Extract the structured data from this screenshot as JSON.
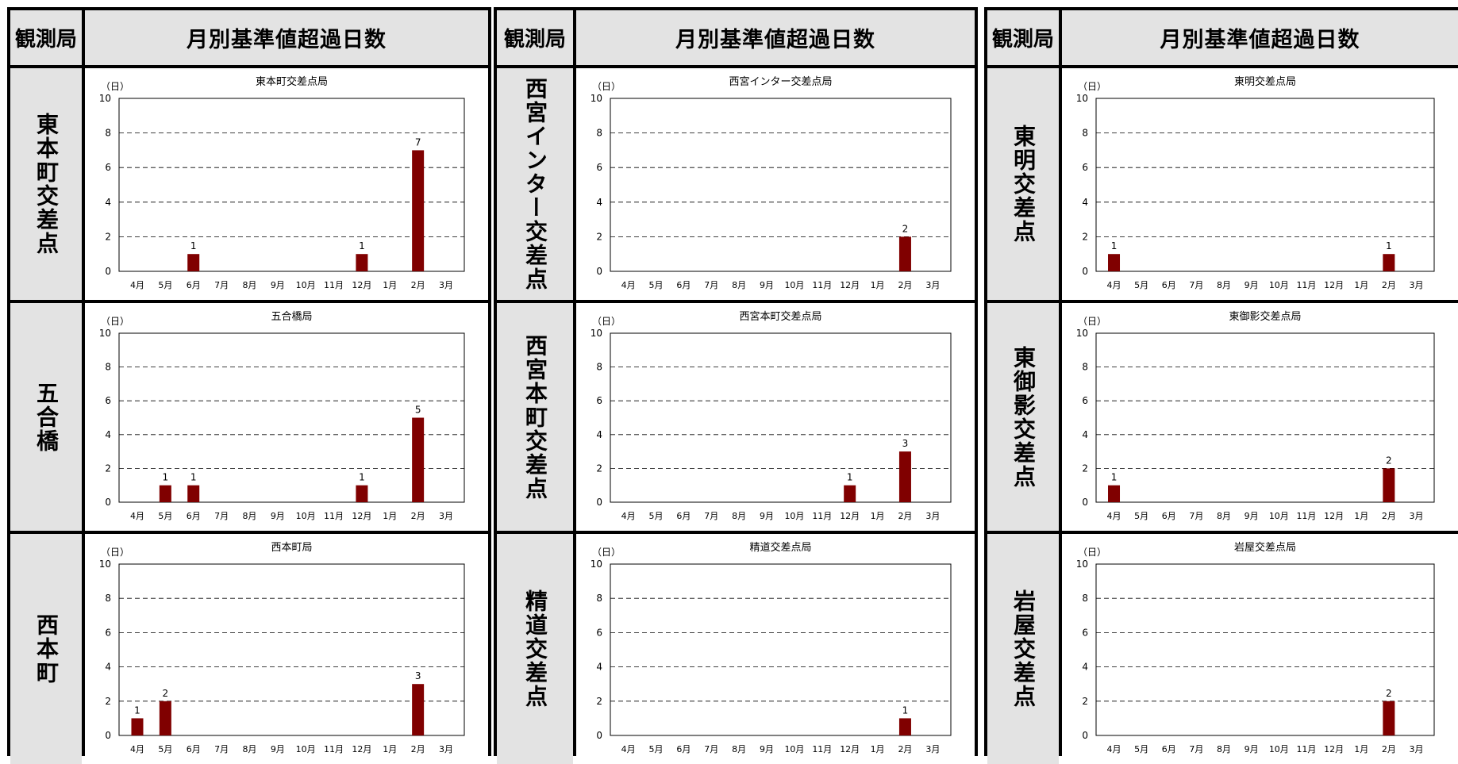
{
  "header": {
    "observatory_label": "観測局",
    "title": "月別基準値超過日数"
  },
  "colors": {
    "bar": "#800000",
    "header_bg": "#e3e3e3",
    "border": "#000000"
  },
  "chart_data": [
    {
      "type": "bar",
      "station": "東本町交差点",
      "title": "東本町交差点局",
      "ylabel": "（日）",
      "categories": [
        "4月",
        "5月",
        "6月",
        "7月",
        "8月",
        "9月",
        "10月",
        "11月",
        "12月",
        "1月",
        "2月",
        "3月"
      ],
      "values": [
        0,
        0,
        1,
        0,
        0,
        0,
        0,
        0,
        1,
        0,
        7,
        0
      ],
      "ylim": [
        0,
        10
      ],
      "yticks": [
        0,
        2,
        4,
        6,
        8,
        10
      ],
      "grid": true
    },
    {
      "type": "bar",
      "station": "五合橋",
      "title": "五合橋局",
      "ylabel": "（日）",
      "categories": [
        "4月",
        "5月",
        "6月",
        "7月",
        "8月",
        "9月",
        "10月",
        "11月",
        "12月",
        "1月",
        "2月",
        "3月"
      ],
      "values": [
        0,
        1,
        1,
        0,
        0,
        0,
        0,
        0,
        1,
        0,
        5,
        0
      ],
      "ylim": [
        0,
        10
      ],
      "yticks": [
        0,
        2,
        4,
        6,
        8,
        10
      ],
      "grid": true
    },
    {
      "type": "bar",
      "station": "西本町",
      "title": "西本町局",
      "ylabel": "（日）",
      "categories": [
        "4月",
        "5月",
        "6月",
        "7月",
        "8月",
        "9月",
        "10月",
        "11月",
        "12月",
        "1月",
        "2月",
        "3月"
      ],
      "values": [
        1,
        2,
        0,
        0,
        0,
        0,
        0,
        0,
        0,
        0,
        3,
        0
      ],
      "ylim": [
        0,
        10
      ],
      "yticks": [
        0,
        2,
        4,
        6,
        8,
        10
      ],
      "grid": true
    },
    {
      "type": "bar",
      "station": "西宮インター交差点",
      "title": "西宮インター交差点局",
      "ylabel": "（日）",
      "categories": [
        "4月",
        "5月",
        "6月",
        "7月",
        "8月",
        "9月",
        "10月",
        "11月",
        "12月",
        "1月",
        "2月",
        "3月"
      ],
      "values": [
        0,
        0,
        0,
        0,
        0,
        0,
        0,
        0,
        0,
        0,
        2,
        0
      ],
      "ylim": [
        0,
        10
      ],
      "yticks": [
        0,
        2,
        4,
        6,
        8,
        10
      ],
      "grid": true
    },
    {
      "type": "bar",
      "station": "西宮本町交差点",
      "title": "西宮本町交差点局",
      "ylabel": "（日）",
      "categories": [
        "4月",
        "5月",
        "6月",
        "7月",
        "8月",
        "9月",
        "10月",
        "11月",
        "12月",
        "1月",
        "2月",
        "3月"
      ],
      "values": [
        0,
        0,
        0,
        0,
        0,
        0,
        0,
        0,
        1,
        0,
        3,
        0
      ],
      "ylim": [
        0,
        10
      ],
      "yticks": [
        0,
        2,
        4,
        6,
        8,
        10
      ],
      "grid": true
    },
    {
      "type": "bar",
      "station": "精道交差点",
      "title": "精道交差点局",
      "ylabel": "（日）",
      "categories": [
        "4月",
        "5月",
        "6月",
        "7月",
        "8月",
        "9月",
        "10月",
        "11月",
        "12月",
        "1月",
        "2月",
        "3月"
      ],
      "values": [
        0,
        0,
        0,
        0,
        0,
        0,
        0,
        0,
        0,
        0,
        1,
        0
      ],
      "ylim": [
        0,
        10
      ],
      "yticks": [
        0,
        2,
        4,
        6,
        8,
        10
      ],
      "grid": true
    },
    {
      "type": "bar",
      "station": "東明交差点",
      "title": "東明交差点局",
      "ylabel": "（日）",
      "categories": [
        "4月",
        "5月",
        "6月",
        "7月",
        "8月",
        "9月",
        "10月",
        "11月",
        "12月",
        "1月",
        "2月",
        "3月"
      ],
      "values": [
        1,
        0,
        0,
        0,
        0,
        0,
        0,
        0,
        0,
        0,
        1,
        0
      ],
      "ylim": [
        0,
        10
      ],
      "yticks": [
        0,
        2,
        4,
        6,
        8,
        10
      ],
      "grid": true
    },
    {
      "type": "bar",
      "station": "東御影交差点",
      "title": "東御影交差点局",
      "ylabel": "（日）",
      "categories": [
        "4月",
        "5月",
        "6月",
        "7月",
        "8月",
        "9月",
        "10月",
        "11月",
        "12月",
        "1月",
        "2月",
        "3月"
      ],
      "values": [
        1,
        0,
        0,
        0,
        0,
        0,
        0,
        0,
        0,
        0,
        2,
        0
      ],
      "ylim": [
        0,
        10
      ],
      "yticks": [
        0,
        2,
        4,
        6,
        8,
        10
      ],
      "grid": true
    },
    {
      "type": "bar",
      "station": "岩屋交差点",
      "title": "岩屋交差点局",
      "ylabel": "（日）",
      "categories": [
        "4月",
        "5月",
        "6月",
        "7月",
        "8月",
        "9月",
        "10月",
        "11月",
        "12月",
        "1月",
        "2月",
        "3月"
      ],
      "values": [
        0,
        0,
        0,
        0,
        0,
        0,
        0,
        0,
        0,
        0,
        2,
        0
      ],
      "ylim": [
        0,
        10
      ],
      "yticks": [
        0,
        2,
        4,
        6,
        8,
        10
      ],
      "grid": true
    }
  ]
}
